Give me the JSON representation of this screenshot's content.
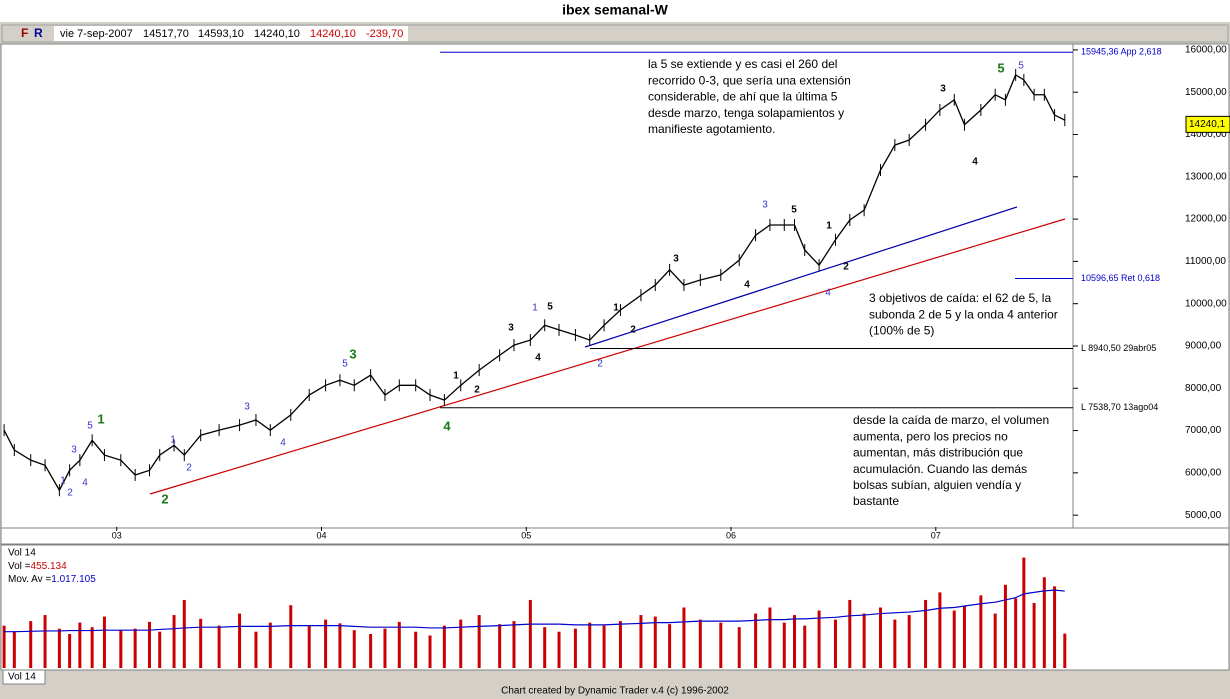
{
  "title": "ibex semanal-W",
  "toolbar": {
    "flags": [
      "F",
      "R"
    ],
    "date": "vie 7-sep-2007",
    "values": [
      "14517,70",
      "14593,10",
      "14240,10"
    ],
    "red_values": [
      "14240,10",
      "-239,70"
    ]
  },
  "chart_data": [
    {
      "type": "line",
      "color": "#000000",
      "x": [
        2002.45,
        2002.5,
        2002.58,
        2002.65,
        2002.72,
        2002.77,
        2002.82,
        2002.88,
        2002.94,
        2003.02,
        2003.09,
        2003.16,
        2003.21,
        2003.28,
        2003.33,
        2003.41,
        2003.5,
        2003.6,
        2003.68,
        2003.75,
        2003.85,
        2003.94,
        2004.02,
        2004.09,
        2004.16,
        2004.24,
        2004.31,
        2004.38,
        2004.46,
        2004.53,
        2004.6,
        2004.68,
        2004.77,
        2004.87,
        2004.94,
        2005.02,
        2005.09,
        2005.16,
        2005.24,
        2005.31,
        2005.38,
        2005.46,
        2005.56,
        2005.63,
        2005.7,
        2005.77,
        2005.85,
        2005.95,
        2006.04,
        2006.12,
        2006.19,
        2006.26,
        2006.31,
        2006.36,
        2006.43,
        2006.51,
        2006.58,
        2006.65,
        2006.73,
        2006.8,
        2006.87,
        2006.95,
        2007.02,
        2007.09,
        2007.14,
        2007.22,
        2007.29,
        2007.34,
        2007.39,
        2007.43,
        2007.48,
        2007.53,
        2007.58,
        2007.63
      ],
      "values": [
        7010,
        6540,
        6300,
        6180,
        5590,
        6060,
        6300,
        6770,
        6420,
        6300,
        5950,
        6060,
        6420,
        6650,
        6420,
        6890,
        7010,
        7130,
        7250,
        7010,
        7370,
        7840,
        8070,
        8190,
        8070,
        8310,
        7840,
        8070,
        8070,
        7840,
        7720,
        8070,
        8430,
        8780,
        9020,
        9140,
        9490,
        9380,
        9260,
        9140,
        9490,
        9850,
        10200,
        10440,
        10800,
        10440,
        10560,
        10680,
        11030,
        11620,
        11860,
        11860,
        11860,
        11270,
        10910,
        11510,
        11980,
        12210,
        13160,
        13750,
        13870,
        14230,
        14580,
        14820,
        14230,
        14580,
        14940,
        14820,
        15410,
        15290,
        14940,
        14940,
        14460,
        14340
      ],
      "xlim": [
        2002.43,
        2007.67
      ],
      "xticks": [
        {
          "value": 2003,
          "label": "03"
        },
        {
          "value": 2004,
          "label": "04"
        },
        {
          "value": 2005,
          "label": "05"
        },
        {
          "value": 2006,
          "label": "06"
        },
        {
          "value": 2007,
          "label": "07"
        }
      ],
      "ylim": [
        4720,
        16140
      ],
      "yticks": [
        {
          "value": 16000,
          "label": "16000,00"
        },
        {
          "value": 15000,
          "label": "15000,00"
        },
        {
          "value": 14000,
          "label": "14000,00"
        },
        {
          "value": 13000,
          "label": "13000,00"
        },
        {
          "value": 12000,
          "label": "12000,00"
        },
        {
          "value": 11000,
          "label": "11000,00"
        },
        {
          "value": 10000,
          "label": "10000,00"
        },
        {
          "value": 9000,
          "label": "9000,00"
        },
        {
          "value": 8000,
          "label": "8000,00"
        },
        {
          "value": 7000,
          "label": "7000,00"
        },
        {
          "value": 6000,
          "label": "6000,00"
        },
        {
          "value": 5000,
          "label": "5000,00"
        }
      ],
      "last_price": {
        "value": 14240.1,
        "label": "14240,1"
      },
      "levels": [
        {
          "value": 15945.36,
          "label": "15945,36 App 2,618",
          "color": "#0000cc"
        },
        {
          "value": 10596.65,
          "label": "10596,65 Ret 0,618",
          "color": "#0000cc"
        },
        {
          "value": 8940.5,
          "label": "L 8940,50 29abr05",
          "color": "#000000"
        },
        {
          "value": 7538.7,
          "label": "L 7538,70 13ago04",
          "color": "#000000"
        }
      ],
      "wave_labels": [
        {
          "text": "1",
          "color": "#1a7a1a"
        },
        {
          "text": "2",
          "color": "#1a7a1a"
        },
        {
          "text": "3",
          "color": "#1a7a1a"
        },
        {
          "text": "4",
          "color": "#1a7a1a"
        },
        {
          "text": "5",
          "color": "#1a7a1a"
        },
        {
          "text": "1",
          "color": "#3333cc"
        },
        {
          "text": "2",
          "color": "#3333cc"
        },
        {
          "text": "3",
          "color": "#3333cc"
        },
        {
          "text": "4",
          "color": "#3333cc"
        },
        {
          "text": "5",
          "color": "#3333cc"
        },
        {
          "text": "1",
          "color": "#3333cc"
        },
        {
          "text": "2",
          "color": "#3333cc"
        },
        {
          "text": "3",
          "color": "#3333cc"
        },
        {
          "text": "4",
          "color": "#3333cc"
        },
        {
          "text": "5",
          "color": "#3333cc"
        },
        {
          "text": "1",
          "color": "#3333cc"
        },
        {
          "text": "2",
          "color": "#3333cc"
        },
        {
          "text": "3",
          "color": "#3333cc"
        },
        {
          "text": "4",
          "color": "#3333cc"
        },
        {
          "text": "5",
          "color": "#3333cc"
        },
        {
          "text": "1",
          "color": "#000000"
        },
        {
          "text": "2",
          "color": "#000000"
        },
        {
          "text": "3",
          "color": "#000000"
        },
        {
          "text": "4",
          "color": "#000000"
        },
        {
          "text": "5",
          "color": "#000000"
        },
        {
          "text": "1",
          "color": "#000000"
        },
        {
          "text": "2",
          "color": "#000000"
        },
        {
          "text": "3",
          "color": "#000000"
        },
        {
          "text": "4",
          "color": "#000000"
        },
        {
          "text": "5",
          "color": "#000000"
        },
        {
          "text": "1",
          "color": "#000000"
        },
        {
          "text": "2",
          "color": "#000000"
        },
        {
          "text": "3",
          "color": "#000000"
        },
        {
          "text": "4",
          "color": "#000000"
        }
      ],
      "notes": [
        [
          "la 5 se extiende y es casi el 260 del",
          "recorrido 0-3, que sería una extensión",
          "considerable, de ahí que la última 5",
          "desde marzo,  tenga solapamientos y",
          "manifieste agotamiento."
        ],
        [
          "3 objetivos de caída: el 62 de 5, la",
          "subonda 2 de 5 y la onda 4 anterior",
          "(100% de 5)"
        ],
        [
          "desde la caída de marzo, el volumen",
          "aumenta, pero los precios no",
          "aumentan, más distribución que",
          "acumulación. Cuando las demás",
          "bolsas subían, alguien vendía y",
          "bastante"
        ]
      ]
    },
    {
      "type": "bar",
      "title": "Vol 14",
      "ylim": [
        0,
        1600000
      ],
      "series": [
        {
          "name": "Vol =",
          "color": "#cc0000",
          "value_label": "455.134",
          "values": [
            560000,
            480000,
            620000,
            700000,
            520000,
            450000,
            600000,
            540000,
            680000,
            500000,
            520000,
            610000,
            480000,
            700000,
            900000,
            650000,
            560000,
            720000,
            480000,
            600000,
            830000,
            560000,
            640000,
            590000,
            500000,
            450000,
            520000,
            610000,
            480000,
            430000,
            560000,
            640000,
            700000,
            580000,
            620000,
            900000,
            540000,
            480000,
            520000,
            600000,
            560000,
            620000,
            700000,
            680000,
            580000,
            800000,
            640000,
            600000,
            540000,
            720000,
            800000,
            600000,
            700000,
            560000,
            760000,
            640000,
            900000,
            720000,
            800000,
            640000,
            700000,
            900000,
            1000000,
            760000,
            820000,
            960000,
            720000,
            1100000,
            920000,
            1460000,
            860000,
            1200000,
            1080000,
            455134
          ]
        },
        {
          "name": "Mov. Av =",
          "color": "#0000cc",
          "value_label": "1.017.105",
          "values": [
            480000,
            480000,
            485000,
            490000,
            490000,
            495000,
            495000,
            495000,
            500000,
            500000,
            500000,
            500000,
            510000,
            520000,
            530000,
            540000,
            540000,
            550000,
            550000,
            550000,
            560000,
            560000,
            560000,
            560000,
            550000,
            540000,
            540000,
            540000,
            540000,
            530000,
            530000,
            540000,
            550000,
            560000,
            570000,
            580000,
            580000,
            580000,
            570000,
            570000,
            570000,
            580000,
            590000,
            600000,
            600000,
            610000,
            620000,
            620000,
            620000,
            630000,
            640000,
            640000,
            650000,
            650000,
            660000,
            670000,
            690000,
            700000,
            720000,
            730000,
            740000,
            760000,
            790000,
            800000,
            820000,
            850000,
            870000,
            900000,
            930000,
            980000,
            1000000,
            1020000,
            1030000,
            1017105
          ]
        }
      ]
    }
  ],
  "footer": "Chart created by Dynamic Trader v.4  (c)  1996-2002"
}
